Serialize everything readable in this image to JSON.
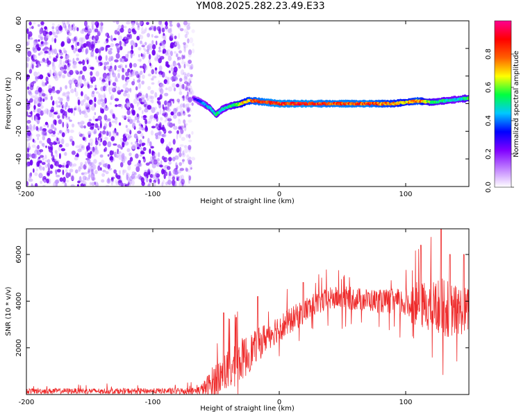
{
  "title": "YM08.2025.282.23.49.E33",
  "colors": {
    "scatter_low": "#d7b8ff",
    "scatter_mid": "#a86cff",
    "scatter_high": "#6f00f2",
    "snr_line": "#ee2a2a",
    "colorbar_stops": [
      "#ffffff",
      "#c080ff",
      "#8000ff",
      "#0000ff",
      "#00c8ff",
      "#00ff40",
      "#ffff00",
      "#ff6000",
      "#ff0000",
      "#ff0090"
    ]
  },
  "chart_data": [
    {
      "type": "heatmap",
      "name": "spectrogram",
      "xlabel": "Height of straight line (km)",
      "ylabel": "Frequency (Hz)",
      "xlim": [
        -200,
        150
      ],
      "ylim": [
        -60,
        60
      ],
      "xticks": [
        -200,
        -100,
        0,
        100
      ],
      "yticks": [
        -60,
        -40,
        -20,
        0,
        20,
        40,
        60
      ],
      "noise_region": {
        "x_from": -200,
        "x_to": -68,
        "freq_range": [
          -60,
          60
        ],
        "amplitude_range": [
          0.02,
          0.25
        ]
      },
      "signal_trace": {
        "x": [
          -68,
          -60,
          -55,
          -50,
          -45,
          -40,
          -35,
          -30,
          -25,
          -20,
          -10,
          0,
          10,
          20,
          30,
          40,
          50,
          60,
          70,
          80,
          90,
          100,
          110,
          120,
          130,
          140,
          150
        ],
        "freq": [
          4,
          0,
          -3,
          -8,
          -4,
          -2,
          -1,
          0,
          2,
          2,
          1,
          0,
          0,
          0,
          0,
          0,
          0,
          0,
          0,
          0,
          0,
          1,
          2,
          1,
          2,
          3,
          4
        ],
        "amplitude": [
          0.25,
          0.45,
          0.5,
          0.55,
          0.5,
          0.55,
          0.6,
          0.7,
          0.8,
          0.85,
          0.9,
          0.92,
          0.9,
          0.92,
          0.9,
          0.88,
          0.9,
          0.88,
          0.9,
          0.85,
          0.8,
          0.75,
          0.85,
          0.6,
          0.55,
          0.5,
          0.6
        ]
      },
      "colorbar": {
        "label": "Normalized spectral amplitude",
        "range": [
          0.0,
          1.0
        ],
        "ticks": [
          "0.0",
          "0.2",
          "0.4",
          "0.6",
          "0.8"
        ]
      }
    },
    {
      "type": "line",
      "name": "snr",
      "xlabel": "Height of straight line (km)",
      "ylabel": "SNR (10 * v/v)",
      "xlim": [
        -200,
        150
      ],
      "ylim": [
        0,
        7100
      ],
      "xticks": [
        -200,
        -100,
        0,
        100
      ],
      "yticks": [
        2000,
        4000,
        6000
      ],
      "envelope": {
        "x": [
          -200,
          -100,
          -65,
          -60,
          -55,
          -50,
          -45,
          -40,
          -35,
          -30,
          -25,
          -20,
          -15,
          -10,
          -5,
          0,
          5,
          10,
          20,
          30,
          40,
          50,
          60,
          70,
          80,
          90,
          100,
          110,
          120,
          130,
          140,
          150
        ],
        "mean": [
          150,
          150,
          150,
          250,
          400,
          600,
          900,
          1000,
          1200,
          1500,
          1700,
          2000,
          2200,
          2500,
          2700,
          2900,
          3000,
          3200,
          3600,
          3900,
          4100,
          4150,
          4100,
          4050,
          4000,
          4000,
          3900,
          3850,
          3800,
          3700,
          3600,
          3600
        ],
        "spread": [
          120,
          120,
          150,
          300,
          600,
          900,
          800,
          900,
          900,
          900,
          900,
          700,
          700,
          650,
          650,
          600,
          600,
          550,
          550,
          500,
          500,
          500,
          500,
          500,
          500,
          550,
          650,
          1000,
          1100,
          1300,
          1100,
          1000
        ]
      },
      "peaks": [
        {
          "x": -44,
          "y": 3500
        },
        {
          "x": -34,
          "y": 3300
        },
        {
          "x": -17,
          "y": 4200
        },
        {
          "x": 19,
          "y": 4800
        },
        {
          "x": 112,
          "y": 6400
        },
        {
          "x": 128,
          "y": 7100
        },
        {
          "x": 135,
          "y": 6000
        },
        {
          "x": 146,
          "y": 6000
        }
      ]
    }
  ]
}
